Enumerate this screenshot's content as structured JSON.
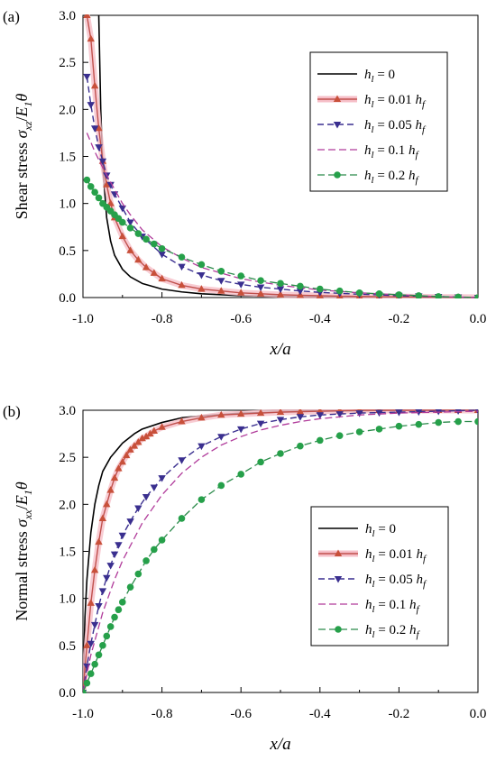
{
  "colors": {
    "black": "#000000",
    "red": "#c0504d",
    "red_marker": "#c8503a",
    "red_halo": "#f6bfc8",
    "blue": "#3a2f8f",
    "magenta": "#b03a9a",
    "green": "#2a8a4a",
    "green_marker": "#26a04a"
  },
  "legend_entries": [
    {
      "base": "h",
      "sub": "l",
      "rest": " = 0",
      "hf": false
    },
    {
      "base": "h",
      "sub": "l",
      "rest": " = 0.01 ",
      "hf": true
    },
    {
      "base": "h",
      "sub": "l",
      "rest": " = 0.05 ",
      "hf": true
    },
    {
      "base": "h",
      "sub": "l",
      "rest": " = 0.1 ",
      "hf": true
    },
    {
      "base": "h",
      "sub": "l",
      "rest": " = 0.2 ",
      "hf": true
    }
  ],
  "chart_data": [
    {
      "panel_label": "(a)",
      "type": "line",
      "ylabel": {
        "prefix": "Shear stress ",
        "sym": "σ",
        "sym_sub": "xz",
        "mid": "/",
        "E": "E",
        "E_sub": "1",
        "theta": "θ"
      },
      "xlabel": "x/a",
      "xlim": [
        -1.0,
        0.0
      ],
      "ylim": [
        0.0,
        3.0
      ],
      "xticks": [
        "-1.0",
        "-0.8",
        "-0.6",
        "-0.4",
        "-0.2",
        "0.0"
      ],
      "yticks": [
        "0.0",
        "0.5",
        "1.0",
        "1.5",
        "2.0",
        "2.5",
        "3.0"
      ],
      "legend_position": "top-right",
      "grid": false,
      "series": [
        {
          "name": "h_l = 0",
          "style": "solid-black",
          "marker": "none",
          "x": [
            -0.96,
            -0.955,
            -0.95,
            -0.94,
            -0.93,
            -0.92,
            -0.9,
            -0.88,
            -0.85,
            -0.8,
            -0.75,
            -0.7,
            -0.6,
            -0.5,
            -0.4,
            -0.3,
            -0.2,
            -0.1,
            0.0
          ],
          "y": [
            3.0,
            2.0,
            1.4,
            0.85,
            0.6,
            0.45,
            0.3,
            0.22,
            0.15,
            0.09,
            0.06,
            0.04,
            0.02,
            0.012,
            0.008,
            0.005,
            0.003,
            0.001,
            0.0
          ]
        },
        {
          "name": "h_l = 0.01 h_f",
          "style": "solid-red",
          "marker": "triangle-up",
          "x": [
            -0.99,
            -0.98,
            -0.97,
            -0.96,
            -0.95,
            -0.94,
            -0.93,
            -0.92,
            -0.9,
            -0.88,
            -0.86,
            -0.84,
            -0.82,
            -0.8,
            -0.75,
            -0.7,
            -0.65,
            -0.6,
            -0.55,
            -0.5,
            -0.45,
            -0.4,
            -0.35,
            -0.3,
            -0.25,
            -0.2,
            -0.15,
            -0.1,
            -0.05,
            0.0
          ],
          "y": [
            3.0,
            2.75,
            2.25,
            1.8,
            1.45,
            1.2,
            1.0,
            0.85,
            0.65,
            0.5,
            0.4,
            0.32,
            0.26,
            0.2,
            0.13,
            0.09,
            0.07,
            0.05,
            0.04,
            0.03,
            0.025,
            0.02,
            0.015,
            0.012,
            0.01,
            0.008,
            0.006,
            0.004,
            0.002,
            0.0
          ]
        },
        {
          "name": "h_l = 0.05 h_f",
          "style": "dash-blue",
          "marker": "triangle-down",
          "x": [
            -0.99,
            -0.98,
            -0.97,
            -0.96,
            -0.95,
            -0.94,
            -0.93,
            -0.92,
            -0.9,
            -0.88,
            -0.85,
            -0.8,
            -0.75,
            -0.7,
            -0.65,
            -0.6,
            -0.55,
            -0.5,
            -0.45,
            -0.4,
            -0.35,
            -0.3,
            -0.25,
            -0.2,
            -0.15,
            -0.1,
            -0.05,
            0.0
          ],
          "y": [
            2.35,
            2.05,
            1.8,
            1.6,
            1.45,
            1.3,
            1.2,
            1.1,
            0.95,
            0.8,
            0.65,
            0.46,
            0.33,
            0.24,
            0.18,
            0.14,
            0.11,
            0.09,
            0.07,
            0.055,
            0.045,
            0.035,
            0.028,
            0.02,
            0.015,
            0.01,
            0.005,
            0.0
          ]
        },
        {
          "name": "h_l = 0.1 h_f",
          "style": "dash-magenta",
          "marker": "none",
          "x": [
            -0.99,
            -0.97,
            -0.95,
            -0.92,
            -0.9,
            -0.88,
            -0.85,
            -0.8,
            -0.75,
            -0.7,
            -0.6,
            -0.5,
            -0.4,
            -0.3,
            -0.2,
            -0.1,
            0.0
          ],
          "y": [
            1.75,
            1.55,
            1.38,
            1.15,
            1.0,
            0.88,
            0.72,
            0.54,
            0.42,
            0.32,
            0.2,
            0.13,
            0.08,
            0.05,
            0.03,
            0.01,
            0.0
          ]
        },
        {
          "name": "h_l = 0.2 h_f",
          "style": "dash-green",
          "marker": "circle",
          "x": [
            -0.99,
            -0.98,
            -0.97,
            -0.96,
            -0.95,
            -0.94,
            -0.93,
            -0.92,
            -0.91,
            -0.9,
            -0.88,
            -0.86,
            -0.84,
            -0.82,
            -0.8,
            -0.75,
            -0.7,
            -0.65,
            -0.6,
            -0.55,
            -0.5,
            -0.45,
            -0.4,
            -0.35,
            -0.3,
            -0.25,
            -0.2,
            -0.15,
            -0.1,
            -0.05,
            0.0
          ],
          "y": [
            1.25,
            1.18,
            1.12,
            1.06,
            1.0,
            0.96,
            0.92,
            0.88,
            0.84,
            0.8,
            0.74,
            0.68,
            0.62,
            0.57,
            0.52,
            0.43,
            0.35,
            0.28,
            0.23,
            0.18,
            0.15,
            0.12,
            0.09,
            0.07,
            0.05,
            0.04,
            0.03,
            0.02,
            0.01,
            0.005,
            0.0
          ]
        }
      ]
    },
    {
      "panel_label": "(b)",
      "type": "line",
      "ylabel": {
        "prefix": "Normal stress ",
        "sym": "σ",
        "sym_sub": "xx",
        "mid": "/",
        "E": "E",
        "E_sub": "1",
        "theta": "θ"
      },
      "xlabel": "x/a",
      "xlim": [
        -1.0,
        0.0
      ],
      "ylim": [
        0.0,
        3.0
      ],
      "xticks": [
        "-1.0",
        "-0.8",
        "-0.6",
        "-0.4",
        "-0.2",
        "0.0"
      ],
      "yticks": [
        "0.0",
        "0.5",
        "1.0",
        "1.5",
        "2.0",
        "2.5",
        "3.0"
      ],
      "legend_position": "bottom-right",
      "grid": false,
      "series": [
        {
          "name": "h_l = 0",
          "style": "solid-black",
          "marker": "none",
          "x": [
            -1.0,
            -0.995,
            -0.99,
            -0.98,
            -0.97,
            -0.96,
            -0.95,
            -0.93,
            -0.9,
            -0.87,
            -0.85,
            -0.8,
            -0.75,
            -0.7,
            -0.6,
            -0.5,
            -0.4,
            -0.3,
            -0.2,
            -0.1,
            0.0
          ],
          "y": [
            0.0,
            0.8,
            1.2,
            1.7,
            2.0,
            2.2,
            2.35,
            2.5,
            2.65,
            2.75,
            2.8,
            2.87,
            2.92,
            2.94,
            2.97,
            2.98,
            2.99,
            2.995,
            3.0,
            3.0,
            3.0
          ]
        },
        {
          "name": "h_l = 0.01 h_f",
          "style": "solid-red",
          "marker": "triangle-up",
          "x": [
            -1.0,
            -0.99,
            -0.98,
            -0.97,
            -0.96,
            -0.95,
            -0.94,
            -0.93,
            -0.92,
            -0.91,
            -0.9,
            -0.89,
            -0.88,
            -0.87,
            -0.86,
            -0.85,
            -0.84,
            -0.83,
            -0.82,
            -0.8,
            -0.75,
            -0.7,
            -0.65,
            -0.6,
            -0.55,
            -0.5,
            -0.45,
            -0.4,
            -0.35,
            -0.3,
            -0.25,
            -0.2,
            -0.15,
            -0.1,
            -0.05,
            0.0
          ],
          "y": [
            0.0,
            0.5,
            0.95,
            1.3,
            1.6,
            1.85,
            2.0,
            2.15,
            2.28,
            2.38,
            2.45,
            2.52,
            2.58,
            2.62,
            2.66,
            2.7,
            2.72,
            2.75,
            2.78,
            2.82,
            2.88,
            2.92,
            2.95,
            2.96,
            2.97,
            2.98,
            2.985,
            2.99,
            2.995,
            3.0,
            3.0,
            3.0,
            3.0,
            3.0,
            3.0,
            3.0
          ]
        },
        {
          "name": "h_l = 0.05 h_f",
          "style": "dash-blue",
          "marker": "triangle-down",
          "x": [
            -1.0,
            -0.99,
            -0.98,
            -0.97,
            -0.96,
            -0.95,
            -0.94,
            -0.93,
            -0.92,
            -0.91,
            -0.9,
            -0.88,
            -0.86,
            -0.84,
            -0.82,
            -0.8,
            -0.75,
            -0.7,
            -0.65,
            -0.6,
            -0.55,
            -0.5,
            -0.45,
            -0.4,
            -0.35,
            -0.3,
            -0.25,
            -0.2,
            -0.15,
            -0.1,
            -0.05,
            0.0
          ],
          "y": [
            0.0,
            0.28,
            0.52,
            0.72,
            0.92,
            1.08,
            1.22,
            1.35,
            1.47,
            1.57,
            1.67,
            1.82,
            1.96,
            2.08,
            2.18,
            2.28,
            2.47,
            2.62,
            2.72,
            2.8,
            2.86,
            2.9,
            2.93,
            2.95,
            2.96,
            2.97,
            2.975,
            2.98,
            2.985,
            2.99,
            2.995,
            3.0
          ]
        },
        {
          "name": "h_l = 0.1 h_f",
          "style": "dash-magenta",
          "marker": "none",
          "x": [
            -1.0,
            -0.98,
            -0.95,
            -0.92,
            -0.9,
            -0.85,
            -0.8,
            -0.75,
            -0.7,
            -0.65,
            -0.6,
            -0.55,
            -0.5,
            -0.45,
            -0.4,
            -0.3,
            -0.2,
            -0.1,
            0.0
          ],
          "y": [
            0.0,
            0.4,
            0.85,
            1.2,
            1.4,
            1.8,
            2.1,
            2.33,
            2.5,
            2.63,
            2.72,
            2.79,
            2.84,
            2.88,
            2.91,
            2.95,
            2.97,
            2.98,
            2.99
          ]
        },
        {
          "name": "h_l = 0.2 h_f",
          "style": "dash-green",
          "marker": "circle",
          "x": [
            -1.0,
            -0.99,
            -0.98,
            -0.97,
            -0.96,
            -0.95,
            -0.94,
            -0.93,
            -0.92,
            -0.91,
            -0.9,
            -0.88,
            -0.86,
            -0.84,
            -0.82,
            -0.8,
            -0.75,
            -0.7,
            -0.65,
            -0.6,
            -0.55,
            -0.5,
            -0.45,
            -0.4,
            -0.35,
            -0.3,
            -0.25,
            -0.2,
            -0.15,
            -0.1,
            -0.05,
            0.0
          ],
          "y": [
            0.0,
            0.1,
            0.2,
            0.3,
            0.4,
            0.5,
            0.6,
            0.7,
            0.8,
            0.88,
            0.96,
            1.12,
            1.26,
            1.4,
            1.52,
            1.62,
            1.85,
            2.05,
            2.2,
            2.32,
            2.45,
            2.54,
            2.62,
            2.68,
            2.73,
            2.77,
            2.8,
            2.83,
            2.85,
            2.87,
            2.88,
            2.88
          ]
        }
      ]
    }
  ]
}
